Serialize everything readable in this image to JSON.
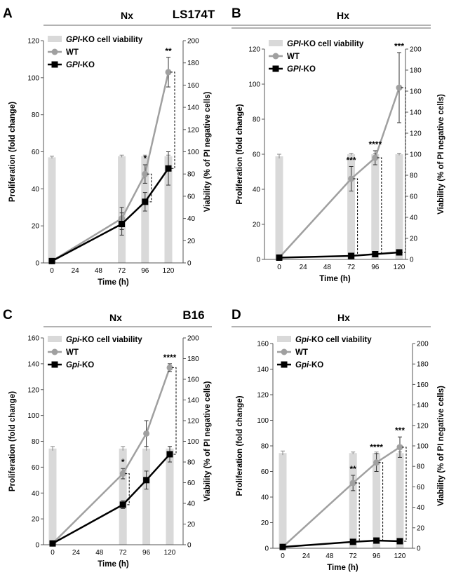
{
  "figure": {
    "cell_lines": [
      "LS174T",
      "B16"
    ]
  },
  "chart_data": [
    {
      "type": "line",
      "panel": "A",
      "condition": "Nx",
      "cell_line": "LS174T",
      "xlabel": "Time (h)",
      "ylabel": "Proliferation (fold change)",
      "y2label": "Viability (% of PI negative cells)",
      "x_ticks": [
        0,
        24,
        48,
        72,
        96,
        120
      ],
      "ylim": [
        0,
        120
      ],
      "y_ticks": [
        0,
        20,
        40,
        60,
        80,
        100,
        120
      ],
      "y2lim": [
        0,
        200
      ],
      "y2_ticks": [
        0,
        20,
        40,
        60,
        80,
        100,
        120,
        140,
        160,
        180,
        200
      ],
      "legend": {
        "bars": [
          "GPI",
          "-KO cell viability"
        ],
        "wt": "WT",
        "ko": [
          "GPI",
          "-KO"
        ]
      },
      "bars": {
        "x": [
          0,
          72,
          96,
          120
        ],
        "values": [
          95,
          96,
          96,
          96
        ],
        "errors": [
          1,
          1,
          1,
          1
        ]
      },
      "series": [
        {
          "name": "WT",
          "x": [
            0,
            72,
            96,
            120
          ],
          "values": [
            1,
            24,
            48,
            103
          ],
          "errors": [
            0,
            6,
            5,
            8
          ],
          "color": "#a0a0a0"
        },
        {
          "name": "GPI-KO",
          "x": [
            0,
            72,
            96,
            120
          ],
          "values": [
            1,
            21,
            33,
            51
          ],
          "errors": [
            0,
            6,
            5,
            9
          ],
          "color": "#000000"
        }
      ],
      "significance": [
        {
          "x": 96,
          "label": "*"
        },
        {
          "x": 120,
          "label": "**"
        }
      ]
    },
    {
      "type": "line",
      "panel": "B",
      "condition": "Hx",
      "xlabel": "Time (h)",
      "ylabel": "Proliferation (fold change)",
      "y2label": "Viability (% of PI negative cells)",
      "x_ticks": [
        0,
        24,
        48,
        72,
        96,
        120
      ],
      "ylim": [
        0,
        120
      ],
      "y_ticks": [
        0,
        20,
        40,
        60,
        80,
        100,
        120
      ],
      "y2lim": [
        0,
        200
      ],
      "y2_ticks": [
        0,
        20,
        40,
        60,
        80,
        100,
        120,
        140,
        160,
        180,
        200
      ],
      "legend": {
        "bars": [
          "GPI",
          "-KO cell viability"
        ],
        "wt": "WT",
        "ko": [
          "GPI",
          "-KO"
        ]
      },
      "bars": {
        "x": [
          0,
          72,
          96,
          120
        ],
        "values": [
          98,
          100,
          100,
          100
        ],
        "errors": [
          2,
          1,
          1,
          1
        ]
      },
      "series": [
        {
          "name": "WT",
          "x": [
            0,
            72,
            96,
            120
          ],
          "values": [
            1,
            46,
            58,
            98
          ],
          "errors": [
            0,
            7,
            4,
            20
          ],
          "color": "#a0a0a0"
        },
        {
          "name": "GPI-KO",
          "x": [
            0,
            72,
            96,
            120
          ],
          "values": [
            1,
            2,
            3,
            4
          ],
          "errors": [
            0,
            0.5,
            0.5,
            1
          ],
          "color": "#000000"
        }
      ],
      "significance": [
        {
          "x": 72,
          "label": "***"
        },
        {
          "x": 96,
          "label": "****"
        },
        {
          "x": 120,
          "label": "***"
        }
      ]
    },
    {
      "type": "line",
      "panel": "C",
      "condition": "Nx",
      "cell_line": "B16",
      "xlabel": "Time (h)",
      "ylabel": "Proliferation (fold change)",
      "y2label": "Viability (% of PI negative cells)",
      "x_ticks": [
        0,
        24,
        48,
        72,
        96,
        120
      ],
      "ylim": [
        0,
        160
      ],
      "y_ticks": [
        0,
        20,
        40,
        60,
        80,
        100,
        120,
        140,
        160
      ],
      "y2lim": [
        0,
        200
      ],
      "y2_ticks": [
        0,
        20,
        40,
        60,
        80,
        100,
        120,
        140,
        160,
        180,
        200
      ],
      "legend": {
        "bars": [
          "Gpi",
          "-KO cell viability"
        ],
        "wt": "WT",
        "ko": [
          "Gpi",
          "-KO"
        ]
      },
      "bars": {
        "x": [
          0,
          72,
          96,
          120
        ],
        "values": [
          93,
          93,
          93,
          93
        ],
        "errors": [
          2,
          2,
          2,
          2
        ]
      },
      "series": [
        {
          "name": "WT",
          "x": [
            0,
            72,
            96,
            120
          ],
          "values": [
            1,
            55,
            86,
            137
          ],
          "errors": [
            0,
            4,
            10,
            3
          ],
          "color": "#a0a0a0"
        },
        {
          "name": "Gpi-KO",
          "x": [
            0,
            72,
            96,
            120
          ],
          "values": [
            1,
            31,
            50,
            70
          ],
          "errors": [
            0,
            3,
            7,
            6
          ],
          "color": "#000000"
        }
      ],
      "significance": [
        {
          "x": 72,
          "label": "*"
        },
        {
          "x": 120,
          "label": "****"
        }
      ]
    },
    {
      "type": "line",
      "panel": "D",
      "condition": "Hx",
      "xlabel": "Time (h)",
      "ylabel": "Proliferation (fold change)",
      "y2label": "Viability (% of PI negative cells)",
      "x_ticks": [
        0,
        24,
        48,
        72,
        96,
        120
      ],
      "ylim": [
        0,
        160
      ],
      "y_ticks": [
        0,
        20,
        40,
        60,
        80,
        100,
        120,
        140,
        160
      ],
      "y2lim": [
        0,
        200
      ],
      "y2_ticks": [
        0,
        20,
        40,
        60,
        80,
        100,
        120,
        140,
        160,
        180,
        200
      ],
      "legend": {
        "bars": [
          "Gpi",
          "-KO cell viability"
        ],
        "wt": "WT",
        "ko": [
          "Gpi",
          "-KO"
        ]
      },
      "bars": {
        "x": [
          0,
          72,
          96,
          120
        ],
        "values": [
          93,
          93,
          93,
          93
        ],
        "errors": [
          2,
          1,
          1,
          1
        ]
      },
      "series": [
        {
          "name": "WT",
          "x": [
            0,
            72,
            96,
            120
          ],
          "values": [
            1,
            51,
            67,
            79
          ],
          "errors": [
            0,
            6,
            7,
            8
          ],
          "color": "#a0a0a0"
        },
        {
          "name": "Gpi-KO",
          "x": [
            0,
            72,
            96,
            120
          ],
          "values": [
            1,
            5,
            6,
            5.5
          ],
          "errors": [
            0,
            1,
            1,
            1
          ],
          "color": "#000000"
        }
      ],
      "significance": [
        {
          "x": 72,
          "label": "**"
        },
        {
          "x": 96,
          "label": "****"
        },
        {
          "x": 120,
          "label": "***"
        }
      ]
    }
  ]
}
